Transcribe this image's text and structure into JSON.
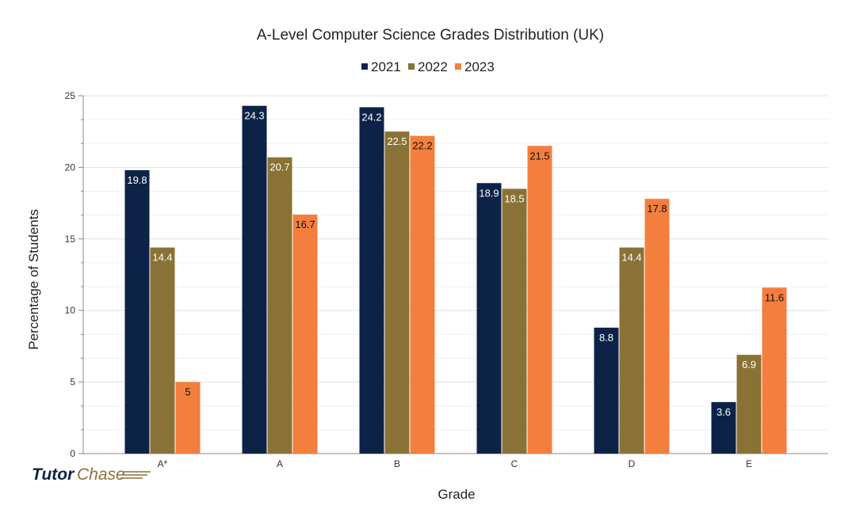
{
  "chart_data": {
    "type": "bar",
    "title": "A-Level Computer Science Grades Distribution (UK)",
    "xlabel": "Grade",
    "ylabel": "Percentage of Students",
    "categories": [
      "A*",
      "A",
      "B",
      "C",
      "D",
      "E"
    ],
    "series": [
      {
        "name": "2021",
        "color": "#0c2347",
        "label_color": "#ffffff",
        "values": [
          19.8,
          24.3,
          24.2,
          18.9,
          8.8,
          3.6
        ]
      },
      {
        "name": "2022",
        "color": "#8a7236",
        "label_color": "#ffffff",
        "values": [
          14.4,
          20.7,
          22.5,
          18.5,
          14.4,
          6.9
        ]
      },
      {
        "name": "2023",
        "color": "#f47e3e",
        "label_color": "#111111",
        "values": [
          5,
          16.7,
          22.2,
          21.5,
          17.8,
          11.6
        ]
      }
    ],
    "ylim": [
      0,
      25
    ],
    "yticks": [
      0,
      5,
      10,
      15,
      20,
      25
    ],
    "grid": true,
    "legend_position": "top"
  },
  "logo": {
    "part1": "Tutor",
    "part2": "Chase"
  }
}
